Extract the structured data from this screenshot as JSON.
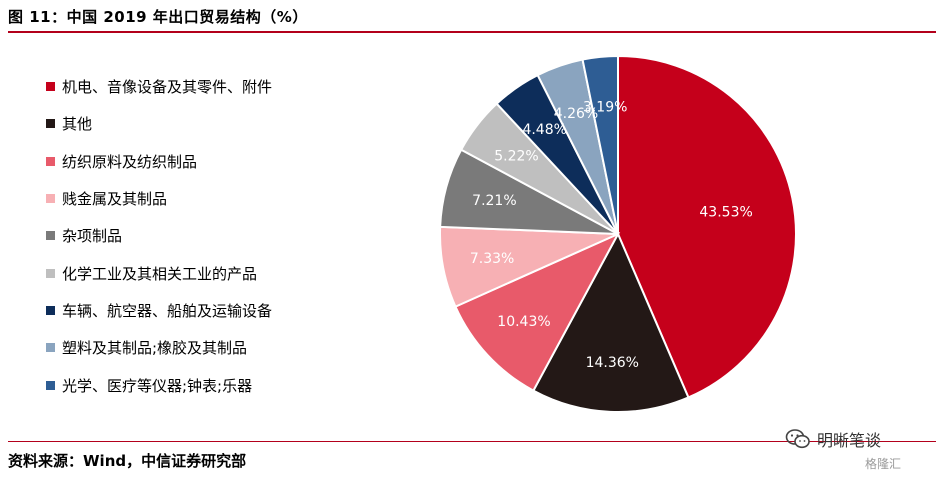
{
  "header": {
    "title": "图 11：中国 2019 年出口贸易结构（%）"
  },
  "footer": {
    "source": "资料来源：Wind，中信证券研究部"
  },
  "watermark": {
    "text": "明晰笔谈",
    "icon": "wechat-icon",
    "secondary_text": "格隆汇"
  },
  "chart_data": {
    "type": "pie",
    "title": "",
    "start_angle_deg": 0,
    "direction": "clockwise",
    "legend_position": "left",
    "slices": [
      {
        "name": "机电、音像设备及其零件、附件",
        "value": 43.53,
        "label": "43.53%",
        "color": "#c5001b"
      },
      {
        "name": "其他",
        "value": 14.36,
        "label": "14.36%",
        "color": "#231816"
      },
      {
        "name": "纺织原料及纺织制品",
        "value": 10.43,
        "label": "10.43%",
        "color": "#e85a6a"
      },
      {
        "name": "贱金属及其制品",
        "value": 7.33,
        "label": "7.33%",
        "color": "#f7b0b4"
      },
      {
        "name": "杂项制品",
        "value": 7.21,
        "label": "7.21%",
        "color": "#7a7a7a"
      },
      {
        "name": "化学工业及其相关工业的产品",
        "value": 5.22,
        "label": "5.22%",
        "color": "#bfbfbf"
      },
      {
        "name": "车辆、航空器、船舶及运输设备",
        "value": 4.48,
        "label": "4.48%",
        "color": "#0d2d5a"
      },
      {
        "name": "塑料及其制品;橡胶及其制品",
        "value": 4.26,
        "label": "4.26%",
        "color": "#8aa4bf"
      },
      {
        "name": "光学、医疗等仪器;钟表;乐器",
        "value": 3.19,
        "label": "3.19%",
        "color": "#2e5d94"
      }
    ]
  }
}
